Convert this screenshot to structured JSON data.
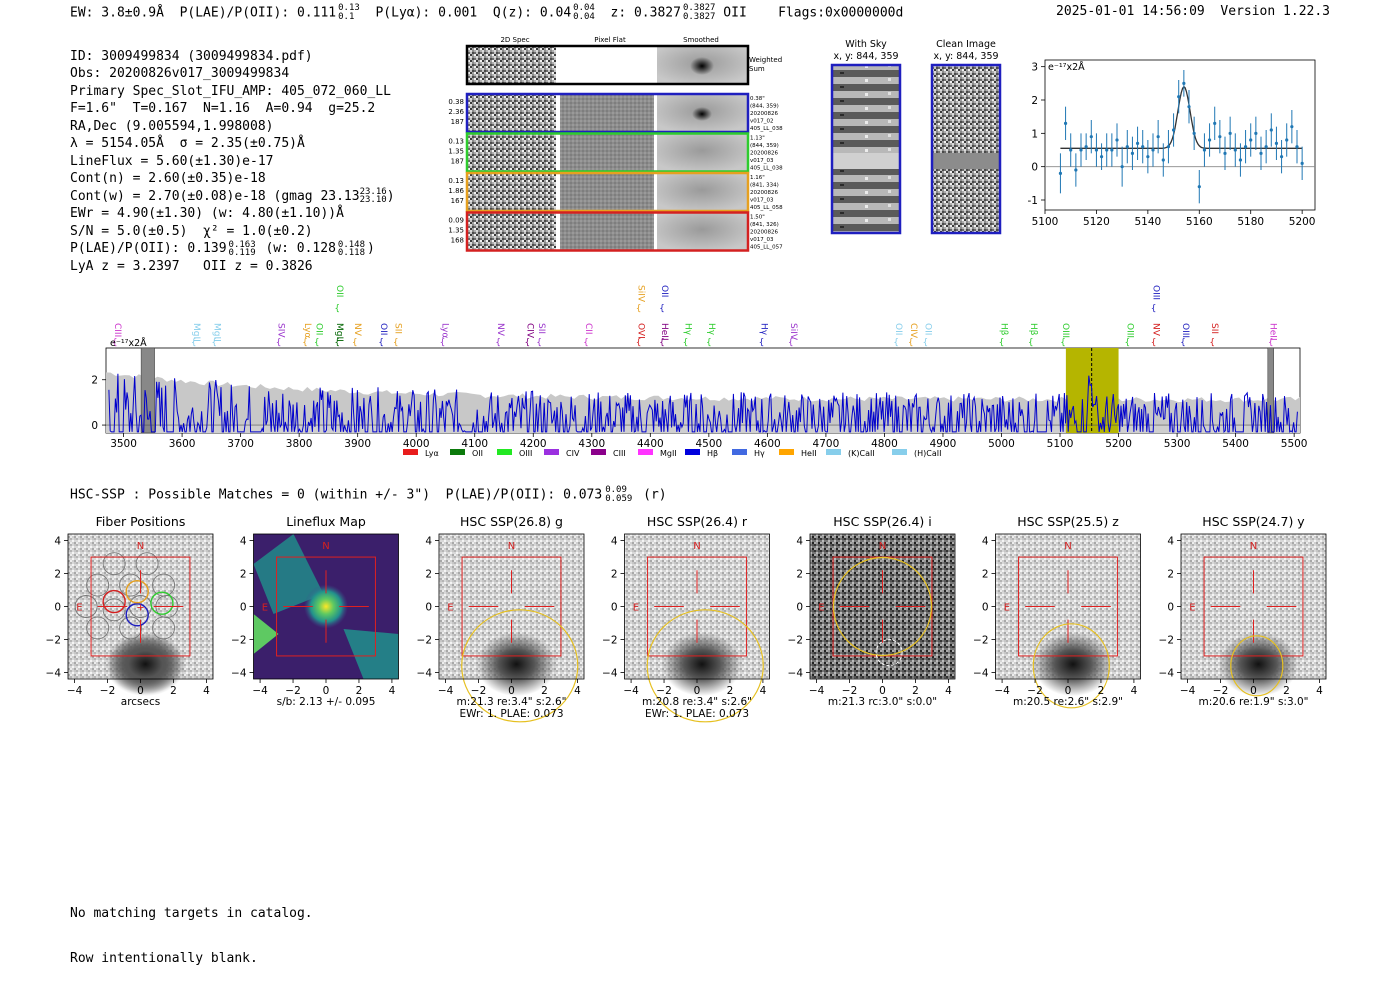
{
  "header": {
    "ew": "EW: 3.8±0.9Å",
    "plae": "P(LAE)/P(OII): 0.111",
    "plae_hi": "0.13",
    "plae_lo": "0.1",
    "plya": "P(Lyα): 0.001",
    "qz": "Q(z): 0.04",
    "qz_hi": "0.04",
    "qz_lo": "0.04",
    "z": "z: 0.3827",
    "z_hi": "0.3827",
    "z_lo": "0.3827",
    "z_line": "OII",
    "flags": "Flags:0x0000000d",
    "datetime": "2025-01-01 14:56:09",
    "version": "Version 1.22.3"
  },
  "info": {
    "id": "ID: 3009499834 (3009499834.pdf)",
    "obs": "Obs: 20200826v017_3009499834",
    "primary": "Primary Spec_Slot_IFU_AMP: 405_072_060_LL",
    "fparams": "F=1.6\"  T=0.167  N=1.16  A=0.94  g=25.2",
    "radec": "RA,Dec (9.005594,1.998008)",
    "lambda": "λ = 5154.05Å  σ = 2.35(±0.75)Å",
    "lineflux": "LineFlux = 5.60(±1.30)e-17",
    "contn": "Cont(n) = 2.60(±0.35)e-18",
    "contw": "Cont(w) = 2.70(±0.08)e-18 (gmag 23.13",
    "contw_hi": "23.16",
    "contw_lo": "23.10",
    "ewr": "EWr = 4.90(±1.30) (w: 4.80(±1.10))Å",
    "sn": "S/N = 5.0(±0.5)  χ² = 1.0(±0.2)",
    "plae": "P(LAE)/P(OII): 0.139",
    "plae_hi": "0.163",
    "plae_lo": "0.119",
    "plae_w": "(w: 0.128",
    "plae_w_hi": "0.148",
    "plae_w_lo": "0.118",
    "lya": "LyA z = 3.2397   OII z = 0.3826"
  },
  "spec2d": {
    "col_headers": [
      "2D Spec",
      "Pixel Flat",
      "Smoothed"
    ],
    "weighted_label": "Weighted\nSum",
    "rows": [
      {
        "color": "#1f1fbf",
        "left": [
          "0.38",
          "2.36",
          "187"
        ],
        "right": [
          "0.38\"",
          "(844, 359)",
          "20200826",
          "v017_02",
          "405_LL_038"
        ]
      },
      {
        "color": "#2ecc2e",
        "left": [
          "0.13",
          "1.35",
          "187"
        ],
        "right": [
          "1.13\"",
          "(844, 359)",
          "20200826",
          "v017_03",
          "405_LL_038"
        ]
      },
      {
        "color": "#e6a020",
        "left": [
          "0.13",
          "1.86",
          "167"
        ],
        "right": [
          "1.16\"",
          "(841, 334)",
          "20200826",
          "v017_03",
          "405_LL_058"
        ]
      },
      {
        "color": "#d42020",
        "left": [
          "0.09",
          "1.35",
          "168"
        ],
        "right": [
          "1.50\"",
          "(841, 326)",
          "20200826",
          "v017_03",
          "405_LL_057"
        ]
      }
    ]
  },
  "sky": {
    "title": "With Sky",
    "coords": "x, y: 844, 359"
  },
  "clean": {
    "title": "Clean Image",
    "coords": "x, y: 844, 359"
  },
  "zoom_chart_data": {
    "type": "scatter",
    "ylabel_unit": "e⁻¹⁷x2Å",
    "xlim": [
      5100,
      5205
    ],
    "ylim": [
      -1.3,
      3.2
    ],
    "xticks": [
      5100,
      5120,
      5140,
      5160,
      5180,
      5200
    ],
    "yticks": [
      -1,
      0,
      1,
      2,
      3
    ],
    "x": [
      5106,
      5108,
      5110,
      5112,
      5114,
      5116,
      5118,
      5120,
      5122,
      5124,
      5126,
      5128,
      5130,
      5132,
      5134,
      5136,
      5138,
      5140,
      5142,
      5144,
      5146,
      5148,
      5150,
      5152,
      5154,
      5156,
      5158,
      5160,
      5162,
      5164,
      5166,
      5168,
      5170,
      5172,
      5174,
      5176,
      5178,
      5180,
      5182,
      5184,
      5186,
      5188,
      5190,
      5192,
      5194,
      5196,
      5198,
      5200
    ],
    "y": [
      -0.2,
      1.3,
      0.5,
      -0.1,
      0.5,
      0.6,
      0.9,
      0.5,
      0.3,
      0.5,
      0.5,
      0.8,
      0.0,
      0.6,
      0.4,
      0.7,
      0.6,
      0.3,
      0.5,
      0.9,
      0.2,
      0.6,
      1.1,
      2.1,
      2.5,
      1.8,
      1.0,
      -0.6,
      0.5,
      0.8,
      1.3,
      0.9,
      0.4,
      1.0,
      0.5,
      0.2,
      0.6,
      0.8,
      1.0,
      0.4,
      0.6,
      1.1,
      0.7,
      0.3,
      0.8,
      1.2,
      0.6,
      0.1
    ],
    "err": [
      0.6,
      0.5,
      0.5,
      0.5,
      0.5,
      0.4,
      0.5,
      0.5,
      0.4,
      0.5,
      0.5,
      0.5,
      0.6,
      0.5,
      0.5,
      0.5,
      0.5,
      0.5,
      0.5,
      0.5,
      0.5,
      0.5,
      0.5,
      0.5,
      0.4,
      0.5,
      0.5,
      0.5,
      0.5,
      0.5,
      0.5,
      0.5,
      0.5,
      0.5,
      0.5,
      0.5,
      0.5,
      0.5,
      0.5,
      0.5,
      0.5,
      0.5,
      0.5,
      0.5,
      0.5,
      0.5,
      0.5,
      0.5
    ],
    "fit_center": 5154.05,
    "fit_sigma": 2.35,
    "fit_amp": 1.85,
    "fit_base": 0.55
  },
  "chart_data": {
    "type": "line",
    "title": "",
    "ylabel_unit": "e⁻¹⁷x2Å",
    "xlim": [
      3470,
      5510
    ],
    "ylim": [
      -0.35,
      3.4
    ],
    "xticks": [
      3500,
      3600,
      3700,
      3800,
      3900,
      4000,
      4100,
      4200,
      4300,
      4400,
      4500,
      4600,
      4700,
      4800,
      4900,
      5000,
      5100,
      5200,
      5300,
      5400,
      5500
    ],
    "yticks": [
      0,
      2
    ],
    "highlight_band": [
      5110,
      5200
    ],
    "line_marker": 5154.05,
    "gray_bands": [
      [
        3530,
        3553
      ],
      [
        5455,
        5465
      ]
    ],
    "lines": [
      {
        "name": "CIII",
        "x": 3485,
        "color": "#cc33cc",
        "row": 0
      },
      {
        "name": "MgII",
        "x": 3620,
        "color": "#87ceeb",
        "row": 0
      },
      {
        "name": "MgII",
        "x": 3655,
        "color": "#87ceeb",
        "row": 0
      },
      {
        "name": "SIV",
        "x": 3765,
        "color": "#9933cc",
        "row": 0
      },
      {
        "name": "Lyα",
        "x": 3810,
        "color": "#e6a020",
        "row": 0
      },
      {
        "name": "OII",
        "x": 3830,
        "color": "#2ecc2e",
        "row": 0
      },
      {
        "name": "MgII",
        "x": 3865,
        "color": "#006400",
        "row": 0
      },
      {
        "name": "OII",
        "x": 3865,
        "color": "#2ecc2e",
        "row": 1
      },
      {
        "name": "NV",
        "x": 3895,
        "color": "#e6a020",
        "row": 0
      },
      {
        "name": "OII",
        "x": 3940,
        "color": "#1f1fbf",
        "row": 0
      },
      {
        "name": "SII",
        "x": 3965,
        "color": "#e6a020",
        "row": 0
      },
      {
        "name": "Lyα",
        "x": 4045,
        "color": "#9933cc",
        "row": 0
      },
      {
        "name": "NV",
        "x": 4140,
        "color": "#9933cc",
        "row": 0
      },
      {
        "name": "CIV",
        "x": 4190,
        "color": "#800080",
        "row": 0
      },
      {
        "name": "SII",
        "x": 4210,
        "color": "#9933cc",
        "row": 0
      },
      {
        "name": "CII",
        "x": 4290,
        "color": "#cc33cc",
        "row": 0
      },
      {
        "name": "OVI",
        "x": 4380,
        "color": "#d42020",
        "row": 0
      },
      {
        "name": "SiIV",
        "x": 4380,
        "color": "#e6a020",
        "row": 1
      },
      {
        "name": "HeII",
        "x": 4420,
        "color": "#800080",
        "row": 0
      },
      {
        "name": "OII",
        "x": 4420,
        "color": "#1f1fbf",
        "row": 1
      },
      {
        "name": "Hγ",
        "x": 4460,
        "color": "#2ecc2e",
        "row": 0
      },
      {
        "name": "Hγ",
        "x": 4500,
        "color": "#2ecc2e",
        "row": 0
      },
      {
        "name": "Hγ",
        "x": 4590,
        "color": "#1f1fbf",
        "row": 0
      },
      {
        "name": "SiIV",
        "x": 4640,
        "color": "#9933cc",
        "row": 0
      },
      {
        "name": "OII",
        "x": 4820,
        "color": "#87ceeb",
        "row": 0
      },
      {
        "name": "CIV",
        "x": 4845,
        "color": "#e6a020",
        "row": 0
      },
      {
        "name": "OII",
        "x": 4870,
        "color": "#87ceeb",
        "row": 0
      },
      {
        "name": "Hβ",
        "x": 5000,
        "color": "#2ecc2e",
        "row": 0
      },
      {
        "name": "Hβ",
        "x": 5050,
        "color": "#2ecc2e",
        "row": 0
      },
      {
        "name": "OIII",
        "x": 5105,
        "color": "#2ecc2e",
        "row": 0
      },
      {
        "name": "OIII",
        "x": 5215,
        "color": "#2ecc2e",
        "row": 0
      },
      {
        "name": "NV",
        "x": 5260,
        "color": "#d42020",
        "row": 0
      },
      {
        "name": "OIII",
        "x": 5260,
        "color": "#1f1fbf",
        "row": 1
      },
      {
        "name": "OIII",
        "x": 5310,
        "color": "#1f1fbf",
        "row": 0
      },
      {
        "name": "SII",
        "x": 5360,
        "color": "#d42020",
        "row": 0
      },
      {
        "name": "HeII",
        "x": 5460,
        "color": "#cc33cc",
        "row": 0
      }
    ],
    "legend": [
      {
        "name": "Lyα",
        "color": "#e81c1c"
      },
      {
        "name": "OII",
        "color": "#0b7a0b"
      },
      {
        "name": "OIII",
        "color": "#22e822"
      },
      {
        "name": "CIV",
        "color": "#9b30e0"
      },
      {
        "name": "CIII",
        "color": "#8b008b"
      },
      {
        "name": "MgII",
        "color": "#ff33ff"
      },
      {
        "name": "Hβ",
        "color": "#0000dd"
      },
      {
        "name": "Hγ",
        "color": "#4169e1"
      },
      {
        "name": "HeII",
        "color": "#ffa500"
      },
      {
        "name": "(K)CaII",
        "color": "#87ceeb"
      },
      {
        "name": "(H)CaII",
        "color": "#87ceeb"
      }
    ]
  },
  "hsc": {
    "summary": "HSC-SSP : Possible Matches = 0 (within +/- 3\")  P(LAE)/P(OII): 0.073",
    "summary_hi": "0.09",
    "summary_lo": "0.059",
    "summary_band": "(r)",
    "panels": [
      {
        "title": "Fiber Positions",
        "cap1": "arcsecs",
        "cap2": "",
        "kind": "fiber"
      },
      {
        "title": "Lineflux Map",
        "cap1": "s/b: 2.13 +/- 0.095",
        "cap2": "",
        "kind": "flux"
      },
      {
        "title": "HSC SSP(26.8) g",
        "cap1": "m:21.3  re:3.4\"  s:2.6\"",
        "cap2": "EWr: 1. PLAE: 0.073",
        "kind": "img"
      },
      {
        "title": "HSC SSP(26.4) r",
        "cap1": "m:20.8  re:3.4\"  s:2.6\"",
        "cap2": "EWr: 1. PLAE: 0.073",
        "kind": "img"
      },
      {
        "title": "HSC SSP(26.4) i",
        "cap1": "m:21.3 rc:3.0\"  s:0.0\"",
        "cap2": "",
        "kind": "img_dark"
      },
      {
        "title": "HSC SSP(25.5) z",
        "cap1": "m:20.5  re:2.6\"  s:2.9\"",
        "cap2": "",
        "kind": "img"
      },
      {
        "title": "HSC SSP(24.7) y",
        "cap1": "m:20.6  re:1.9\"  s:3.0\"",
        "cap2": "",
        "kind": "img"
      }
    ],
    "axis_ticks": [
      -4,
      -2,
      0,
      2,
      4
    ],
    "n_label": "N",
    "e_label": "E"
  },
  "footer": {
    "line1": "No matching targets in catalog.",
    "line2": "Row intentionally blank."
  },
  "colors": {
    "spec": "#0000cc",
    "band": "#b5b500",
    "errbar": "#1f77b4",
    "box": "#e02020",
    "ellipse": "#e6c020"
  }
}
